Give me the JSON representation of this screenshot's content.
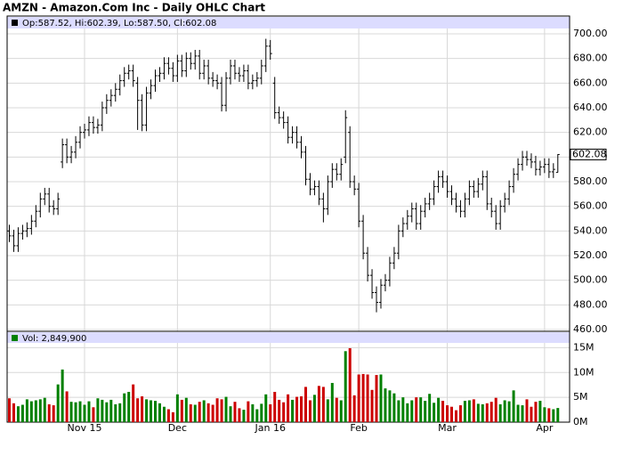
{
  "chart_data": {
    "type": "ohlc",
    "title": "AMZN - Amazon.Com Inc - Daily OHLC Chart",
    "price_legend": "Op:587.52, Hi:602.39, Lo:587.50, Cl:602.08",
    "volume_legend": "Vol: 2,849,900",
    "categories": [
      null,
      null,
      null,
      null,
      null,
      null,
      null,
      null,
      null,
      null,
      null,
      null,
      null,
      null,
      null,
      null,
      null,
      "Nov 15",
      null,
      null,
      null,
      null,
      null,
      null,
      null,
      null,
      null,
      null,
      null,
      null,
      null,
      null,
      null,
      null,
      null,
      null,
      null,
      null,
      "Dec",
      null,
      null,
      null,
      null,
      null,
      null,
      null,
      null,
      null,
      null,
      null,
      null,
      null,
      null,
      null,
      null,
      null,
      null,
      null,
      null,
      "Jan 16",
      null,
      null,
      null,
      null,
      null,
      null,
      null,
      null,
      null,
      null,
      null,
      null,
      null,
      null,
      null,
      null,
      null,
      null,
      null,
      "Feb",
      null,
      null,
      null,
      null,
      null,
      null,
      null,
      null,
      null,
      null,
      null,
      null,
      null,
      null,
      null,
      null,
      null,
      null,
      null,
      "Mar",
      null,
      null,
      null,
      null,
      null,
      null,
      null,
      null,
      null,
      null,
      null,
      null,
      null,
      null,
      null,
      null,
      null,
      null,
      null,
      null,
      null,
      "Apr",
      null,
      null,
      null
    ],
    "open": [
      540,
      536,
      528,
      538,
      540,
      542,
      548,
      556,
      566,
      570,
      560,
      558,
      596,
      610,
      600,
      604,
      612,
      620,
      622,
      628,
      624,
      626,
      640,
      646,
      650,
      655,
      662,
      668,
      670,
      660,
      646,
      626,
      652,
      658,
      666,
      668,
      676,
      672,
      666,
      678,
      670,
      680,
      676,
      682,
      668,
      674,
      664,
      662,
      660,
      642,
      664,
      674,
      668,
      666,
      670,
      660,
      662,
      664,
      674,
      690,
      660,
      636,
      632,
      628,
      616,
      620,
      612,
      604,
      582,
      574,
      576,
      566,
      558,
      580,
      590,
      586,
      600,
      620,
      580,
      574,
      548,
      522,
      504,
      490,
      482,
      496,
      500,
      514,
      522,
      540,
      546,
      552,
      558,
      546,
      556,
      562,
      566,
      576,
      584,
      580,
      572,
      566,
      560,
      556,
      566,
      576,
      572,
      578,
      584,
      562,
      556,
      546,
      560,
      566,
      576,
      586,
      594,
      600,
      598,
      596,
      590,
      592,
      594,
      588,
      587.52
    ],
    "high": [
      545,
      541,
      543,
      545,
      547,
      553,
      561,
      571,
      575,
      575,
      565,
      571,
      615,
      615,
      609,
      617,
      625,
      627,
      633,
      633,
      631,
      645,
      651,
      655,
      660,
      667,
      673,
      675,
      675,
      665,
      651,
      657,
      663,
      671,
      673,
      681,
      681,
      677,
      683,
      683,
      685,
      685,
      687,
      687,
      679,
      679,
      669,
      667,
      665,
      669,
      679,
      679,
      673,
      675,
      675,
      667,
      669,
      679,
      696,
      695,
      665,
      641,
      637,
      633,
      625,
      625,
      617,
      609,
      587,
      581,
      581,
      571,
      585,
      595,
      595,
      599,
      638,
      625,
      585,
      579,
      553,
      527,
      509,
      495,
      501,
      505,
      519,
      527,
      545,
      551,
      557,
      563,
      563,
      561,
      567,
      571,
      581,
      589,
      589,
      585,
      577,
      571,
      565,
      571,
      581,
      581,
      583,
      589,
      589,
      567,
      561,
      565,
      571,
      581,
      591,
      599,
      605,
      605,
      603,
      601,
      597,
      599,
      599,
      595,
      602.39
    ],
    "low": [
      531,
      523,
      523,
      533,
      535,
      537,
      543,
      551,
      561,
      555,
      553,
      553,
      591,
      595,
      595,
      599,
      607,
      615,
      617,
      619,
      619,
      621,
      635,
      641,
      645,
      650,
      657,
      663,
      657,
      622,
      621,
      621,
      647,
      653,
      661,
      663,
      667,
      661,
      661,
      665,
      665,
      671,
      671,
      663,
      663,
      659,
      657,
      655,
      637,
      637,
      659,
      663,
      661,
      661,
      655,
      655,
      657,
      659,
      669,
      679,
      631,
      627,
      623,
      611,
      611,
      607,
      599,
      577,
      569,
      569,
      561,
      547,
      553,
      575,
      581,
      581,
      595,
      575,
      569,
      543,
      517,
      499,
      485,
      474,
      477,
      491,
      495,
      509,
      517,
      535,
      541,
      547,
      541,
      541,
      551,
      557,
      561,
      571,
      575,
      567,
      561,
      555,
      551,
      551,
      561,
      567,
      567,
      573,
      557,
      551,
      541,
      541,
      555,
      561,
      571,
      581,
      589,
      593,
      591,
      585,
      585,
      587,
      583,
      583,
      587.5
    ],
    "close": [
      536,
      528,
      538,
      540,
      542,
      548,
      556,
      566,
      570,
      560,
      558,
      566,
      610,
      600,
      604,
      612,
      620,
      622,
      628,
      624,
      626,
      640,
      646,
      650,
      655,
      662,
      668,
      670,
      662,
      646,
      626,
      652,
      658,
      666,
      668,
      676,
      672,
      666,
      678,
      670,
      680,
      676,
      682,
      668,
      674,
      664,
      662,
      660,
      642,
      664,
      674,
      668,
      666,
      670,
      660,
      662,
      664,
      674,
      690,
      684,
      636,
      632,
      628,
      616,
      620,
      612,
      604,
      582,
      574,
      576,
      566,
      558,
      580,
      590,
      586,
      594,
      632,
      580,
      574,
      548,
      522,
      504,
      490,
      482,
      496,
      500,
      514,
      522,
      540,
      546,
      552,
      558,
      546,
      556,
      562,
      566,
      576,
      584,
      580,
      572,
      566,
      560,
      556,
      566,
      576,
      572,
      578,
      584,
      562,
      556,
      546,
      560,
      566,
      576,
      586,
      594,
      600,
      598,
      596,
      590,
      592,
      594,
      588,
      590,
      602.08
    ],
    "volume": [
      4.8,
      3.8,
      3.2,
      3.5,
      4.6,
      4.2,
      4.4,
      4.6,
      4.9,
      3.6,
      3.4,
      7.6,
      10.6,
      6.2,
      4.1,
      4.0,
      4.2,
      3.5,
      4.2,
      3.0,
      4.8,
      4.5,
      4.0,
      4.5,
      3.6,
      3.8,
      5.8,
      6.1,
      7.6,
      4.8,
      5.2,
      4.6,
      4.4,
      4.3,
      3.8,
      3.1,
      2.6,
      2.0,
      5.6,
      4.5,
      4.9,
      3.6,
      3.5,
      4.1,
      4.4,
      3.8,
      3.5,
      4.8,
      4.6,
      5.1,
      3.2,
      4.1,
      2.8,
      2.5,
      4.2,
      3.6,
      2.6,
      3.7,
      5.6,
      3.6,
      6.1,
      4.5,
      4.0,
      5.6,
      4.5,
      5.1,
      5.2,
      7.1,
      4.4,
      5.5,
      7.3,
      7.1,
      4.6,
      7.9,
      4.9,
      4.4,
      14.3,
      14.9,
      5.4,
      9.6,
      9.7,
      9.6,
      6.5,
      9.5,
      9.6,
      6.8,
      6.4,
      5.8,
      4.4,
      5.0,
      3.8,
      4.4,
      5.0,
      5.0,
      4.3,
      5.7,
      3.9,
      4.9,
      4.3,
      3.4,
      3.1,
      2.4,
      3.4,
      4.3,
      4.4,
      4.6,
      3.7,
      3.6,
      3.8,
      4.1,
      4.9,
      3.6,
      4.4,
      4.2,
      6.4,
      3.5,
      3.4,
      4.6,
      3.1,
      4.1,
      4.3,
      3.0,
      2.8,
      2.6,
      2.8499
    ],
    "ylim": [
      460,
      700
    ],
    "yticks": [
      {
        "value": 460,
        "label": "460.00"
      },
      {
        "value": 480,
        "label": "480.00"
      },
      {
        "value": 500,
        "label": "500.00"
      },
      {
        "value": 520,
        "label": "520.00"
      },
      {
        "value": 540,
        "label": "540.00"
      },
      {
        "value": 560,
        "label": "560.00"
      },
      {
        "value": 580,
        "label": "580.00"
      },
      {
        "value": 600,
        "label": "600.00"
      },
      {
        "value": 620,
        "label": "620.00"
      },
      {
        "value": 640,
        "label": "640.00"
      },
      {
        "value": 660,
        "label": "660.00"
      },
      {
        "value": 680,
        "label": "680.00"
      },
      {
        "value": 700,
        "label": "700.00"
      }
    ],
    "volume_ylim": [
      0,
      18.3
    ],
    "volume_yticks": [
      {
        "value": 0,
        "label": "0M"
      },
      {
        "value": 5,
        "label": "5M"
      },
      {
        "value": 10,
        "label": "10M"
      },
      {
        "value": 15,
        "label": "15M"
      }
    ],
    "bar_color": "#000000",
    "up_color": "#008000",
    "down_color": "#cc0000",
    "legend_band_color": "#dcdcff",
    "grid": true
  }
}
